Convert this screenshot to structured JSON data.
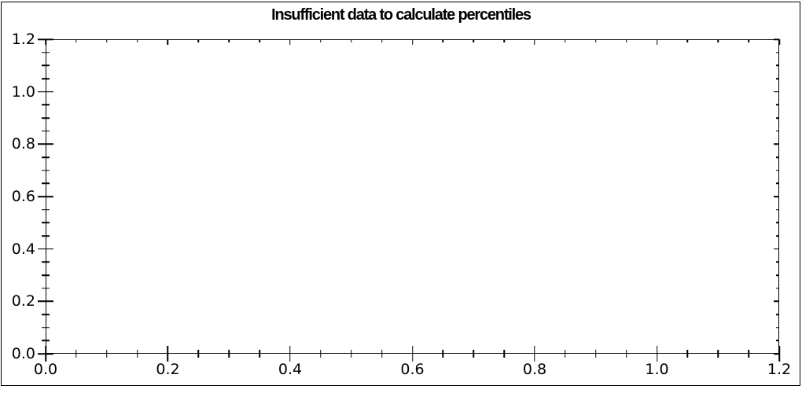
{
  "window": {
    "background": "#ffffff",
    "border_color": "#000000"
  },
  "chart_data": {
    "type": "scatter",
    "title": "Insufficient data to calculate percentiles",
    "series": [],
    "xlabel": "",
    "ylabel": "",
    "xlim": [
      0,
      1.2
    ],
    "ylim": [
      0,
      1.2
    ],
    "x_major_ticks": [
      0,
      0.2,
      0.4,
      0.6,
      0.8,
      1.0,
      1.2
    ],
    "x_tick_labels": [
      "0.0",
      "0.2",
      "0.4",
      "0.6",
      "0.8",
      "1.0",
      "1.2"
    ],
    "y_major_ticks": [
      0,
      0.2,
      0.4,
      0.6,
      0.8,
      1.0,
      1.2
    ],
    "y_tick_labels": [
      "0.0",
      "0.2",
      "0.4",
      "0.6",
      "0.8",
      "1.0",
      "1.2"
    ],
    "minor_tick_step": 0.05,
    "grid": false,
    "legend": null,
    "axis_color": "#000000",
    "title_color": "#000000",
    "plot_bg": "#ffffff"
  }
}
